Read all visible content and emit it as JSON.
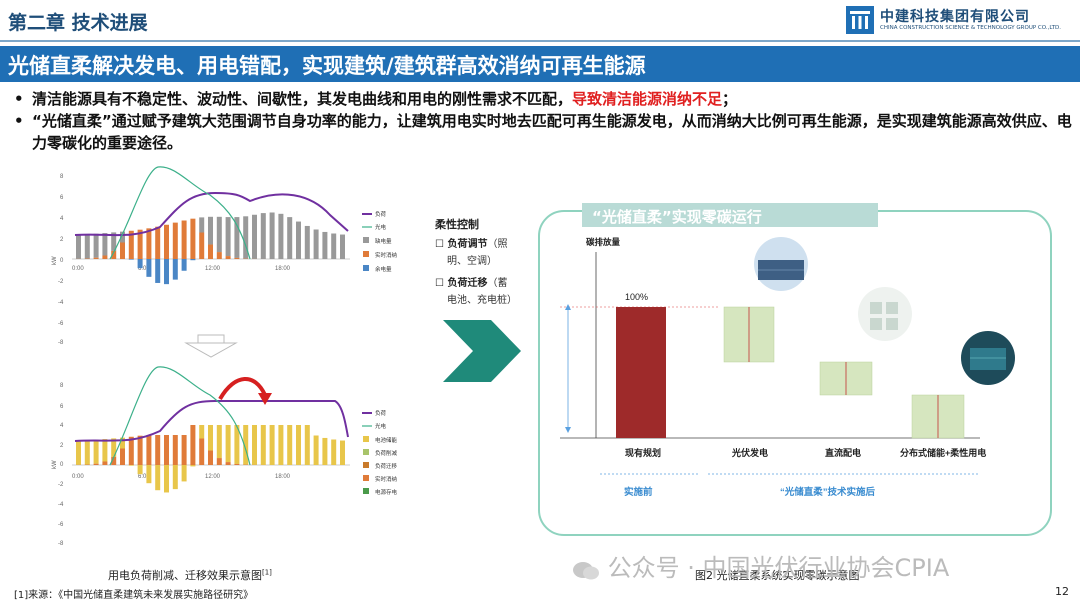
{
  "header": {
    "chapter": "第二章  技术进展",
    "logo_cn": "中建科技集团有限公司",
    "logo_en": "CHINA CONSTRUCTION SCIENCE & TECHNOLOGY GROUP CO.,LTD."
  },
  "banner_title": "光储直柔解决发电、用电错配，实现建筑/建筑群高效消纳可再生能源",
  "bullets": [
    {
      "text": "清洁能源具有不稳定性、波动性、间歇性，其发电曲线和用电的刚性需求不匹配，",
      "highlight": "导致清洁能源消纳不足",
      "tail": "；"
    },
    {
      "text": "“光储直柔”通过赋予建筑大范围调节自身功率的能力，让建筑用电实时地去匹配可再生能源发电，从而消纳大比例可再生能源，是实现建筑能源高效供应、电力零碳化的重要途径。"
    }
  ],
  "left_charts": {
    "caption": "用电负荷削减、迁移效果示意图",
    "caption_sup": "[1]",
    "chart1": {
      "y_ticks": [
        "8",
        "6",
        "4",
        "2",
        "0",
        "-2",
        "-4",
        "-6",
        "-8"
      ],
      "y_unit": "kW",
      "x_ticks": [
        "0:00",
        "6:00",
        "12:00",
        "18:00"
      ],
      "legend": [
        "负荷",
        "光电",
        "缺电量",
        "实时消纳",
        "余电量"
      ]
    },
    "chart2": {
      "y_ticks": [
        "8",
        "6",
        "4",
        "2",
        "0",
        "-2",
        "-4",
        "-6",
        "-8"
      ],
      "y_unit": "kW",
      "x_ticks": [
        "0:00",
        "6:00",
        "12:00",
        "18:00"
      ],
      "legend": [
        "负荷",
        "光电",
        "电池储能",
        "负荷削减",
        "负荷迁移",
        "实时消纳",
        "电源存电"
      ]
    }
  },
  "flex_control": {
    "title": "柔性控制",
    "items": [
      {
        "head": "负荷调节",
        "detail_1": "（照",
        "detail_2": "明、空调）"
      },
      {
        "head": "负荷迁移",
        "detail_1": "（蓄",
        "detail_2": "电池、充电桩）"
      }
    ]
  },
  "right_panel": {
    "title": "“光储直柔”实现零碳运行",
    "y_label": "碳排放量",
    "top_value": "100%",
    "categories": [
      "现有规划",
      "光伏发电",
      "直流配电",
      "分布式储能+柔性用电"
    ],
    "before_label": "实施前",
    "after_label": "“光储直柔”技术实施后",
    "caption": "图2 光储直柔系统实现零碳示意图"
  },
  "footnote": "[1]来源：《中国光储直柔建筑未来发展实施路径研究》",
  "page_number": "12",
  "watermark": "公众号 · 中国光伏行业协会CPIA",
  "colors": {
    "brand_blue": "#1f6fb5",
    "highlight_red": "#e02020",
    "panel_green": "#8fd3bf",
    "bar_red": "#9e2a2a",
    "bar_green": "#d6e6bf"
  }
}
